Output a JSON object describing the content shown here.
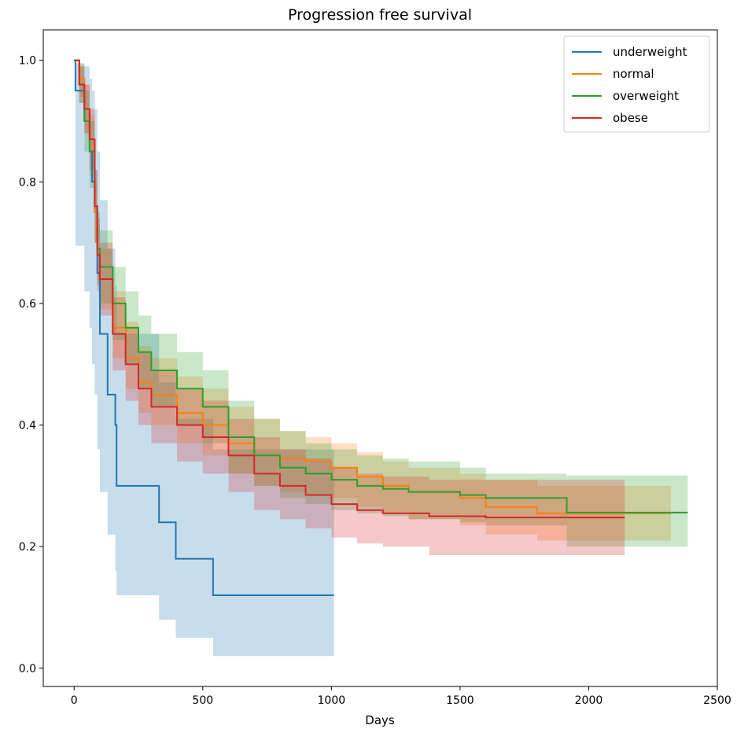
{
  "chart_data": {
    "type": "line",
    "title": "Progression free survival",
    "xlabel": "Days",
    "ylabel": "",
    "xlim": [
      -120,
      2500
    ],
    "ylim": [
      -0.03,
      1.05
    ],
    "xticks": [
      0,
      500,
      1000,
      1500,
      2000,
      2500
    ],
    "yticks": [
      0.0,
      0.2,
      0.4,
      0.6,
      0.8,
      1.0
    ],
    "xtick_labels": [
      "0",
      "500",
      "1000",
      "1500",
      "2000",
      "2500"
    ],
    "ytick_labels": [
      "0.0",
      "0.2",
      "0.4",
      "0.6",
      "0.8",
      "1.0"
    ],
    "grid": false,
    "legend_position": "top-right",
    "series": [
      {
        "name": "underweight",
        "color": "#1f77b4",
        "x": [
          0,
          5,
          40,
          60,
          70,
          80,
          90,
          100,
          130,
          160,
          165,
          330,
          395,
          540,
          1010
        ],
        "y": [
          1.0,
          0.95,
          0.9,
          0.85,
          0.8,
          0.75,
          0.65,
          0.55,
          0.45,
          0.4,
          0.3,
          0.24,
          0.18,
          0.12,
          0.12
        ],
        "ci_upper": [
          1.0,
          0.995,
          0.99,
          0.97,
          0.95,
          0.92,
          0.85,
          0.77,
          0.69,
          0.63,
          0.55,
          0.47,
          0.41,
          0.36,
          0.36
        ],
        "ci_lower": [
          1.0,
          0.695,
          0.62,
          0.56,
          0.5,
          0.45,
          0.36,
          0.29,
          0.22,
          0.16,
          0.12,
          0.08,
          0.05,
          0.02,
          0.02
        ]
      },
      {
        "name": "normal",
        "color": "#ff7f0e",
        "x": [
          0,
          20,
          40,
          60,
          80,
          90,
          100,
          150,
          200,
          250,
          300,
          400,
          500,
          600,
          700,
          800,
          900,
          1000,
          1100,
          1200,
          1300,
          1500,
          1600,
          1800,
          2000,
          2320
        ],
        "y": [
          1.0,
          0.97,
          0.92,
          0.86,
          0.75,
          0.68,
          0.64,
          0.56,
          0.51,
          0.47,
          0.45,
          0.42,
          0.4,
          0.37,
          0.35,
          0.345,
          0.34,
          0.33,
          0.315,
          0.3,
          0.29,
          0.28,
          0.265,
          0.255,
          0.255,
          0.255
        ],
        "ci_upper": [
          1.0,
          0.995,
          0.96,
          0.91,
          0.8,
          0.73,
          0.69,
          0.62,
          0.57,
          0.53,
          0.51,
          0.48,
          0.46,
          0.43,
          0.41,
          0.39,
          0.38,
          0.37,
          0.355,
          0.34,
          0.33,
          0.32,
          0.31,
          0.3,
          0.3,
          0.3
        ],
        "ci_lower": [
          1.0,
          0.94,
          0.88,
          0.81,
          0.7,
          0.63,
          0.59,
          0.51,
          0.46,
          0.42,
          0.4,
          0.37,
          0.35,
          0.32,
          0.3,
          0.29,
          0.285,
          0.28,
          0.265,
          0.255,
          0.245,
          0.235,
          0.22,
          0.21,
          0.21,
          0.21
        ]
      },
      {
        "name": "overweight",
        "color": "#2ca02c",
        "x": [
          0,
          20,
          40,
          60,
          80,
          90,
          100,
          150,
          200,
          250,
          300,
          400,
          500,
          600,
          700,
          800,
          900,
          1000,
          1100,
          1200,
          1300,
          1500,
          1600,
          1915,
          2000,
          2385
        ],
        "y": [
          1.0,
          0.96,
          0.9,
          0.85,
          0.76,
          0.69,
          0.66,
          0.6,
          0.56,
          0.52,
          0.49,
          0.46,
          0.43,
          0.38,
          0.35,
          0.33,
          0.32,
          0.31,
          0.3,
          0.295,
          0.29,
          0.285,
          0.28,
          0.256,
          0.256,
          0.256
        ],
        "ci_upper": [
          1.0,
          0.99,
          0.95,
          0.9,
          0.82,
          0.75,
          0.72,
          0.66,
          0.62,
          0.58,
          0.55,
          0.52,
          0.49,
          0.44,
          0.41,
          0.39,
          0.37,
          0.36,
          0.35,
          0.345,
          0.34,
          0.33,
          0.32,
          0.317,
          0.317,
          0.317
        ],
        "ci_lower": [
          1.0,
          0.93,
          0.85,
          0.79,
          0.7,
          0.63,
          0.6,
          0.54,
          0.5,
          0.46,
          0.43,
          0.4,
          0.37,
          0.32,
          0.3,
          0.28,
          0.27,
          0.26,
          0.255,
          0.25,
          0.245,
          0.24,
          0.235,
          0.2,
          0.2,
          0.2
        ]
      },
      {
        "name": "obese",
        "color": "#d62728",
        "x": [
          0,
          20,
          40,
          60,
          80,
          90,
          100,
          150,
          200,
          250,
          300,
          400,
          500,
          600,
          700,
          800,
          900,
          1000,
          1100,
          1200,
          1380,
          1500,
          1600,
          2140
        ],
        "y": [
          1.0,
          0.96,
          0.92,
          0.87,
          0.76,
          0.68,
          0.64,
          0.55,
          0.5,
          0.46,
          0.43,
          0.4,
          0.38,
          0.35,
          0.32,
          0.3,
          0.285,
          0.27,
          0.26,
          0.255,
          0.25,
          0.25,
          0.248,
          0.248
        ],
        "ci_upper": [
          1.0,
          0.99,
          0.96,
          0.92,
          0.82,
          0.74,
          0.7,
          0.61,
          0.56,
          0.52,
          0.49,
          0.46,
          0.44,
          0.41,
          0.38,
          0.36,
          0.345,
          0.33,
          0.32,
          0.315,
          0.31,
          0.31,
          0.31,
          0.31
        ],
        "ci_lower": [
          1.0,
          0.93,
          0.88,
          0.82,
          0.7,
          0.62,
          0.58,
          0.49,
          0.44,
          0.4,
          0.37,
          0.34,
          0.32,
          0.29,
          0.26,
          0.245,
          0.23,
          0.215,
          0.205,
          0.2,
          0.186,
          0.186,
          0.186,
          0.186
        ]
      }
    ]
  }
}
